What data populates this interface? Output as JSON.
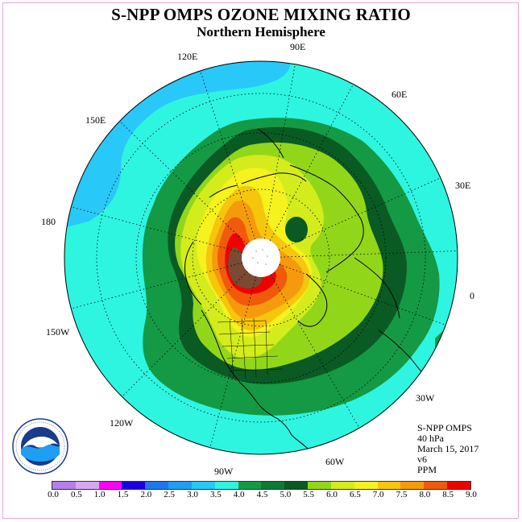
{
  "header": {
    "title": "S-NPP OMPS OZONE MIXING RATIO",
    "subtitle": "Northern Hemisphere"
  },
  "longitude_labels": {
    "lon_90e": "90E",
    "lon_120e": "120E",
    "lon_60e": "60E",
    "lon_150e": "150E",
    "lon_30e": "30E",
    "lon_180": "180",
    "lon_0": "0",
    "lon_150w": "150W",
    "lon_30w": "30W",
    "lon_120w": "120W",
    "lon_60w": "60W",
    "lon_90w": "90W"
  },
  "info": {
    "instrument": "S-NPP OMPS",
    "pressure_level": "40 hPa",
    "date": "March 15, 2017",
    "version": "v6",
    "units": "PPM"
  },
  "logo": {
    "text": "NOAA"
  },
  "colorbar": {
    "tick_labels": [
      "0.0",
      "0.5",
      "1.0",
      "1.5",
      "2.0",
      "2.5",
      "3.0",
      "3.5",
      "4.0",
      "4.5",
      "5.0",
      "5.5",
      "6.0",
      "6.5",
      "7.0",
      "7.5",
      "8.0",
      "8.5",
      "9.0"
    ],
    "colors": [
      "#b47fe6",
      "#d6a8ef",
      "#ff00ff",
      "#1a00dd",
      "#1e78f0",
      "#1e9ef5",
      "#28c8f8",
      "#2ef5e0",
      "#149a44",
      "#0e7a34",
      "#0a5a24",
      "#92d61a",
      "#d4ec1c",
      "#f5f21e",
      "#f5c60c",
      "#f59a0c",
      "#f05a0a",
      "#f00000",
      "#7a4a32"
    ]
  },
  "map_colors": {
    "ocean_bg": "#2ef5e0",
    "low_blue": "#28c8f8",
    "ring_45": "#149a44",
    "ring_50": "#0a5a24",
    "lvl_55": "#92d61a",
    "lvl_60": "#d4ec1c",
    "lvl_65": "#f5f21e",
    "lvl_70": "#f5c60c",
    "lvl_75": "#f59a0c",
    "lvl_80": "#f05a0a",
    "lvl_85": "#f00000",
    "lvl_90": "#7a4a32"
  }
}
